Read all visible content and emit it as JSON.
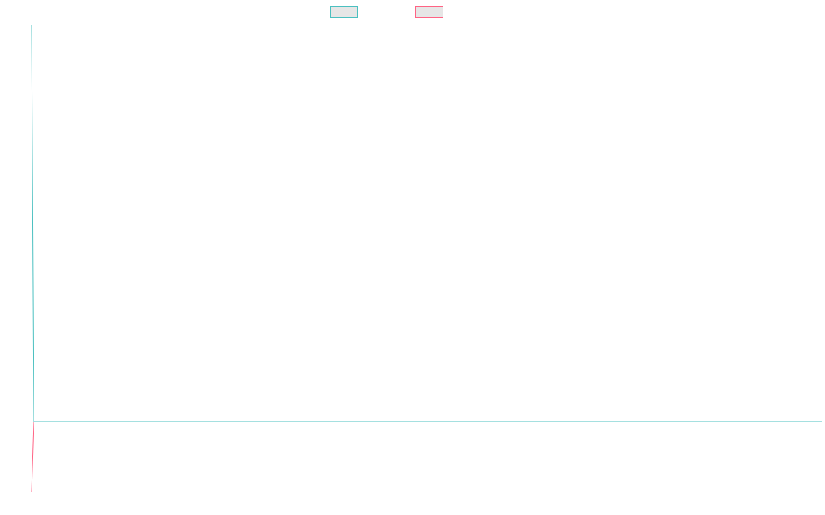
{
  "chart_data": {
    "type": "line",
    "title": "",
    "xlabel": "",
    "ylabel": "",
    "grid": false,
    "legend": {
      "placement": "top-center",
      "entries": [
        {
          "label": "",
          "color": "#4bc0c0",
          "fill": "#e6e6e6"
        },
        {
          "label": "",
          "color": "#ff6384",
          "fill": "#e6e6e6"
        }
      ]
    },
    "x": [
      0,
      0.1,
      100
    ],
    "ylim": [
      0,
      100
    ],
    "series": [
      {
        "color": "#4bc0c0",
        "values": [
          100,
          15,
          15
        ]
      },
      {
        "color": "#ff6384",
        "values": [
          0,
          15,
          null
        ]
      }
    ]
  }
}
